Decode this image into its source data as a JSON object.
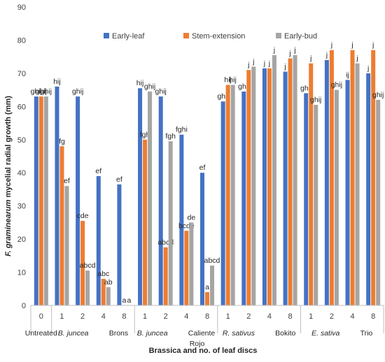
{
  "chart_data": {
    "type": "bar",
    "xlabel": "Brassica and no. of leaf discs",
    "ylabel_prefix": "F. graminearum",
    "ylabel_suffix": " mycelial radial growth (mm)",
    "ylim": [
      0,
      90
    ],
    "yticks": [
      0,
      10,
      20,
      30,
      40,
      50,
      60,
      70,
      80,
      90
    ],
    "grid": false,
    "legend_position": "top",
    "colors": {
      "Early-leaf": "#4472C4",
      "Stem-extension": "#ED7D31",
      "Early-bud": "#A5A5A5"
    },
    "categories": [
      "0",
      "1",
      "2",
      "4",
      "8",
      "1",
      "2",
      "4",
      "8",
      "1",
      "2",
      "4",
      "8",
      "1",
      "2",
      "4",
      "8"
    ],
    "groups": [
      {
        "italic": "",
        "rest": "Untreated",
        "second_line": ""
      },
      {
        "italic": "B. juncea",
        "rest": " Brons",
        "second_line": ""
      },
      {
        "italic": "B. juncea",
        "rest": " Caliente",
        "second_line": "Rojo"
      },
      {
        "italic": "R. sativus",
        "rest": " Bokito",
        "second_line": ""
      },
      {
        "italic": "E. sativa",
        "rest": " Trio",
        "second_line": ""
      }
    ],
    "series": [
      {
        "name": "Early-leaf",
        "values": [
          63,
          66,
          63,
          39,
          36.5,
          65.5,
          63,
          51.5,
          40,
          61.5,
          64.5,
          71.5,
          70.5,
          64,
          74,
          68,
          70
        ],
        "labels": [
          "ghij",
          "hij",
          "ghij",
          "ef",
          "ef",
          "hij",
          "ghij",
          "fghi",
          "ef",
          "ghij",
          "ghij",
          "j",
          "j",
          "ghij",
          "j",
          "ij",
          "j"
        ]
      },
      {
        "name": "Stem-extension",
        "values": [
          63,
          48,
          25.5,
          8,
          0,
          50,
          17.5,
          22.5,
          4,
          66.5,
          71,
          71.5,
          74.5,
          73,
          77,
          77,
          77
        ],
        "labels": [
          "ghij",
          "fg",
          "cde",
          "abc",
          "a",
          "fgh",
          "abcd",
          "bcde",
          "a",
          "hij",
          "j",
          "j",
          "j",
          "j",
          "j",
          "j",
          "j"
        ]
      },
      {
        "name": "Early-bud",
        "values": [
          63,
          36,
          10.5,
          5.5,
          0,
          64.5,
          49.5,
          25,
          12,
          66.5,
          72,
          75.5,
          75.5,
          60.5,
          65,
          73,
          62
        ],
        "labels": [
          "ghij",
          "ef",
          "abcd",
          "ab",
          "a",
          "ghij",
          "fgh",
          "de",
          "abcd",
          "hij",
          "j",
          "j",
          "j",
          "ghij",
          "ghij",
          "j",
          "ghij"
        ]
      }
    ]
  }
}
